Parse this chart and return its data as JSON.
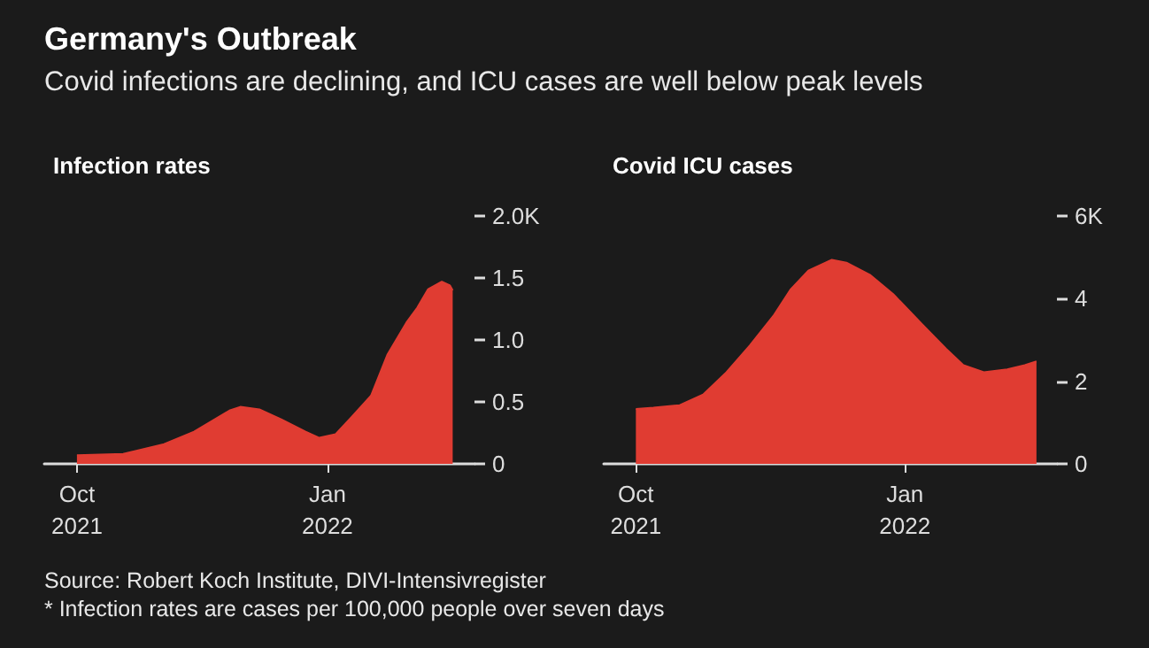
{
  "chart_data": [
    {
      "type": "area",
      "title": "Germany's Outbreak",
      "subtitle": "Covid infections are declining, and ICU cases are well below peak levels",
      "ylabel": "Infection rates",
      "x": [
        "2021-10-01",
        "2021-10-18",
        "2021-11-02",
        "2021-11-13",
        "2021-11-26",
        "2021-11-30",
        "2021-12-07",
        "2021-12-15",
        "2021-12-24",
        "2021-12-29",
        "2022-01-04",
        "2022-01-10",
        "2022-01-17",
        "2022-01-23",
        "2022-01-30",
        "2022-02-03",
        "2022-02-07",
        "2022-02-12",
        "2022-02-15",
        "2022-02-16"
      ],
      "series": [
        {
          "color": "#e03c32",
          "values": [
            0.07,
            0.08,
            0.16,
            0.26,
            0.43,
            0.46,
            0.44,
            0.36,
            0.26,
            0.21,
            0.24,
            0.38,
            0.55,
            0.88,
            1.14,
            1.26,
            1.41,
            1.47,
            1.44,
            1.4
          ]
        }
      ],
      "xlim": [
        "2021-09-19",
        "2022-02-24"
      ],
      "xticks": [
        {
          "value": "2021-10-01",
          "label": "Oct\n2021"
        },
        {
          "value": "2022-01-01",
          "label": "Jan\n2022"
        }
      ],
      "ylim": [
        0,
        2
      ],
      "yticks": [
        0,
        0.5,
        {
          "value": 1,
          "label": "1.0"
        },
        1.5,
        {
          "value": 2,
          "label": "2.0K"
        }
      ],
      "grid": false
    },
    {
      "type": "area",
      "ylabel": "Covid ICU cases",
      "x": [
        "2021-10-01",
        "2021-10-07",
        "2021-10-16",
        "2021-10-24",
        "2021-11-01",
        "2021-11-09",
        "2021-11-17",
        "2021-11-23",
        "2021-11-29",
        "2021-12-07",
        "2021-12-12",
        "2021-12-20",
        "2021-12-28",
        "2022-01-07",
        "2022-01-15",
        "2022-01-21",
        "2022-01-28",
        "2022-02-05",
        "2022-02-11",
        "2022-02-15"
      ],
      "series": [
        {
          "color": "#e03c32",
          "values": [
            1.33,
            1.36,
            1.42,
            1.68,
            2.22,
            2.87,
            3.58,
            4.23,
            4.68,
            4.94,
            4.87,
            4.58,
            4.11,
            3.37,
            2.79,
            2.39,
            2.22,
            2.29,
            2.39,
            2.48
          ]
        }
      ],
      "xlim": [
        "2021-09-20",
        "2022-02-22"
      ],
      "xticks": [
        {
          "value": "2021-10-01",
          "label": "Oct\n2021"
        },
        {
          "value": "2022-01-01",
          "label": "Jan\n2022"
        }
      ],
      "ylim": [
        0,
        6
      ],
      "yticks": [
        0,
        2,
        4,
        {
          "value": 6,
          "label": "6K"
        }
      ],
      "grid": false,
      "annotations": [
        "Source: Robert Koch Institute, DIVI-Intensivregister",
        "* Infection rates are cases per 100,000 people over seven days"
      ]
    }
  ]
}
